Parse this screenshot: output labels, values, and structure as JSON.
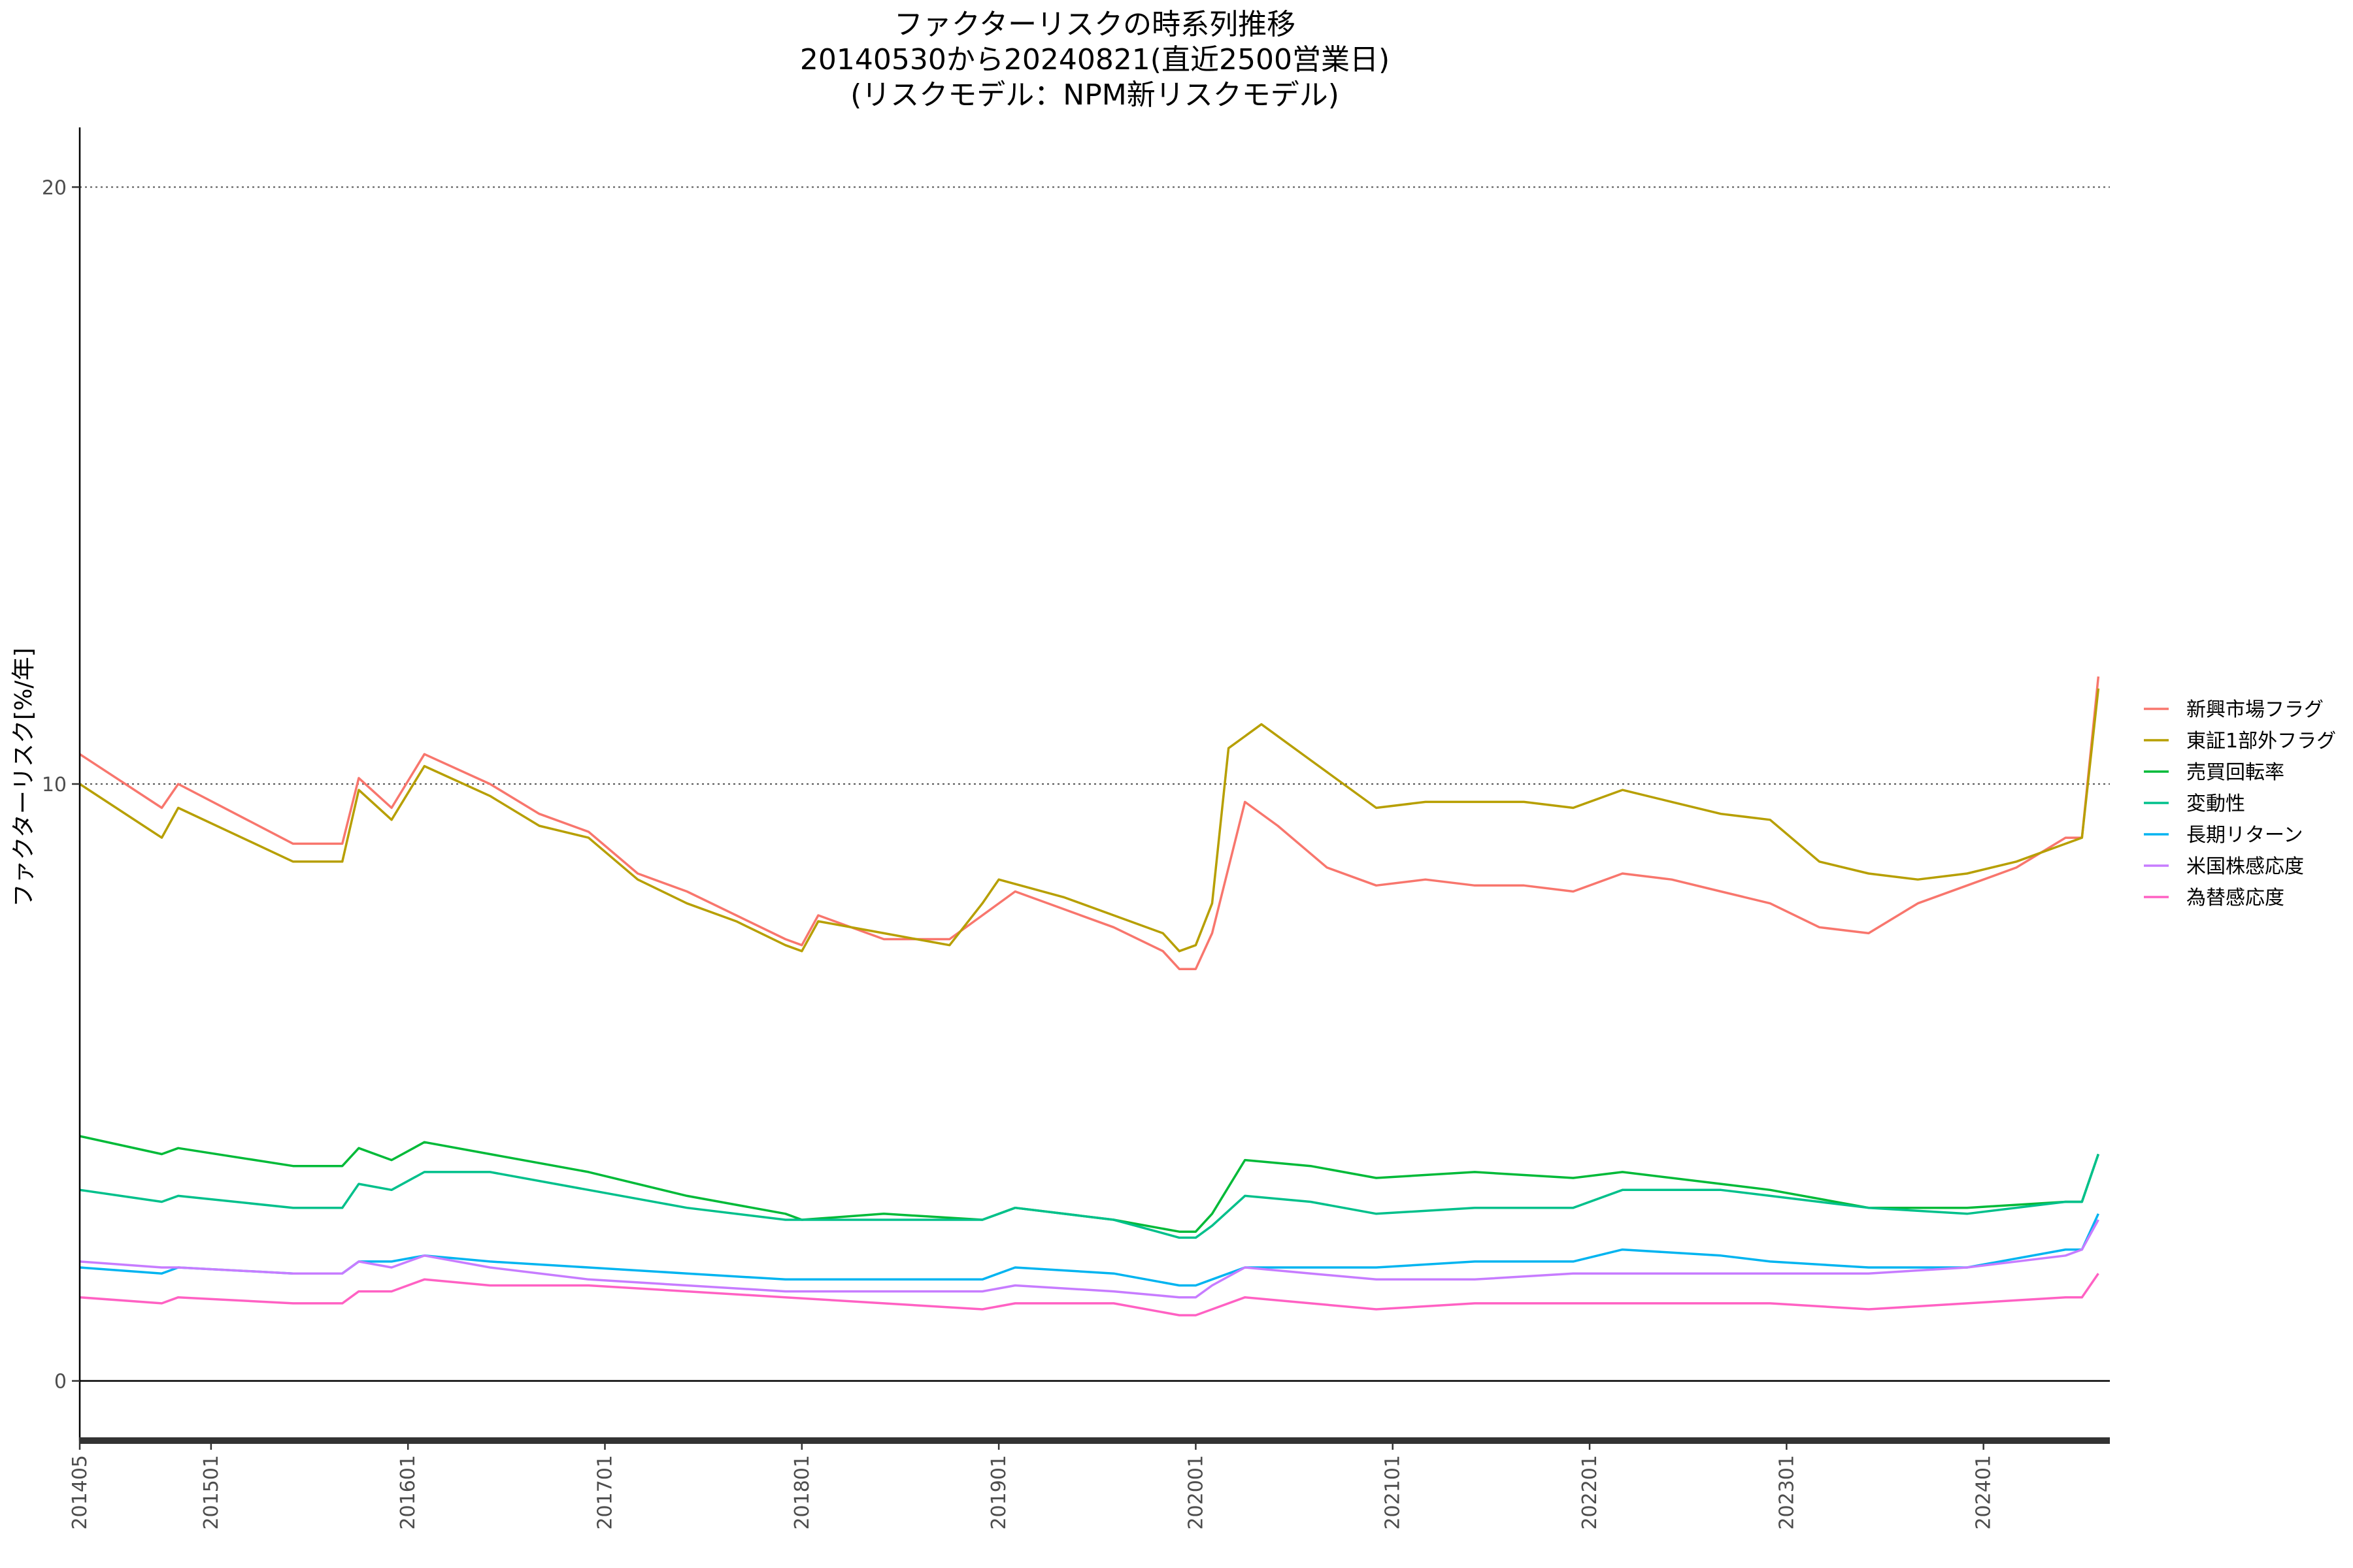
{
  "chart_data": {
    "type": "line",
    "title_lines": [
      "ファクターリスクの時系列推移",
      "20140530から20240821(直近2500営業日)",
      "(リスクモデル：NPM新リスクモデル)"
    ],
    "xlabel": "",
    "ylabel": "ファクターリスク[%/年]",
    "ylim": [
      -1,
      21
    ],
    "xlim": [
      "2014-05",
      "2024-08"
    ],
    "y_ticks": [
      0,
      10,
      20
    ],
    "y_gridlines": [
      10,
      20
    ],
    "y_zero_line": 0,
    "x_ticks": [
      {
        "label": "201405",
        "date": "2014-05"
      },
      {
        "label": "201501",
        "date": "2015-01"
      },
      {
        "label": "201601",
        "date": "2016-01"
      },
      {
        "label": "201701",
        "date": "2017-01"
      },
      {
        "label": "201801",
        "date": "2018-01"
      },
      {
        "label": "201901",
        "date": "2019-01"
      },
      {
        "label": "202001",
        "date": "2020-01"
      },
      {
        "label": "202101",
        "date": "2021-01"
      },
      {
        "label": "202201",
        "date": "2022-01"
      },
      {
        "label": "202301",
        "date": "2023-01"
      },
      {
        "label": "202401",
        "date": "2024-01"
      }
    ],
    "legend_position": "right",
    "series": [
      {
        "name": "新興市場フラグ",
        "color": "#F8766D",
        "points": [
          [
            "2014-05",
            10.5
          ],
          [
            "2014-10",
            9.6
          ],
          [
            "2014-11",
            10.0
          ],
          [
            "2015-06",
            9.0
          ],
          [
            "2015-09",
            9.0
          ],
          [
            "2015-10",
            10.1
          ],
          [
            "2015-12",
            9.6
          ],
          [
            "2016-02",
            10.5
          ],
          [
            "2016-06",
            10.0
          ],
          [
            "2016-09",
            9.5
          ],
          [
            "2016-12",
            9.2
          ],
          [
            "2017-03",
            8.5
          ],
          [
            "2017-06",
            8.2
          ],
          [
            "2017-09",
            7.8
          ],
          [
            "2017-12",
            7.4
          ],
          [
            "2018-01",
            7.3
          ],
          [
            "2018-02",
            7.8
          ],
          [
            "2018-06",
            7.4
          ],
          [
            "2018-10",
            7.4
          ],
          [
            "2018-12",
            7.8
          ],
          [
            "2019-02",
            8.2
          ],
          [
            "2019-05",
            7.9
          ],
          [
            "2019-08",
            7.6
          ],
          [
            "2019-11",
            7.2
          ],
          [
            "2019-12",
            6.9
          ],
          [
            "2020-01",
            6.9
          ],
          [
            "2020-02",
            7.5
          ],
          [
            "2020-04",
            9.7
          ],
          [
            "2020-06",
            9.3
          ],
          [
            "2020-09",
            8.6
          ],
          [
            "2020-12",
            8.3
          ],
          [
            "2021-03",
            8.4
          ],
          [
            "2021-06",
            8.3
          ],
          [
            "2021-09",
            8.3
          ],
          [
            "2021-12",
            8.2
          ],
          [
            "2022-03",
            8.5
          ],
          [
            "2022-06",
            8.4
          ],
          [
            "2022-09",
            8.2
          ],
          [
            "2022-12",
            8.0
          ],
          [
            "2023-03",
            7.6
          ],
          [
            "2023-06",
            7.5
          ],
          [
            "2023-09",
            8.0
          ],
          [
            "2023-12",
            8.3
          ],
          [
            "2024-03",
            8.6
          ],
          [
            "2024-06",
            9.1
          ],
          [
            "2024-07",
            9.1
          ],
          [
            "2024-08",
            11.8
          ]
        ]
      },
      {
        "name": "東証1部外フラグ",
        "color": "#B79F00",
        "points": [
          [
            "2014-05",
            10.0
          ],
          [
            "2014-10",
            9.1
          ],
          [
            "2014-11",
            9.6
          ],
          [
            "2015-06",
            8.7
          ],
          [
            "2015-09",
            8.7
          ],
          [
            "2015-10",
            9.9
          ],
          [
            "2015-12",
            9.4
          ],
          [
            "2016-02",
            10.3
          ],
          [
            "2016-06",
            9.8
          ],
          [
            "2016-09",
            9.3
          ],
          [
            "2016-12",
            9.1
          ],
          [
            "2017-03",
            8.4
          ],
          [
            "2017-06",
            8.0
          ],
          [
            "2017-09",
            7.7
          ],
          [
            "2017-12",
            7.3
          ],
          [
            "2018-01",
            7.2
          ],
          [
            "2018-02",
            7.7
          ],
          [
            "2018-06",
            7.5
          ],
          [
            "2018-10",
            7.3
          ],
          [
            "2018-12",
            8.0
          ],
          [
            "2019-01",
            8.4
          ],
          [
            "2019-05",
            8.1
          ],
          [
            "2019-08",
            7.8
          ],
          [
            "2019-11",
            7.5
          ],
          [
            "2019-12",
            7.2
          ],
          [
            "2020-01",
            7.3
          ],
          [
            "2020-02",
            8.0
          ],
          [
            "2020-03",
            10.6
          ],
          [
            "2020-05",
            11.0
          ],
          [
            "2020-08",
            10.4
          ],
          [
            "2020-12",
            9.6
          ],
          [
            "2021-03",
            9.7
          ],
          [
            "2021-06",
            9.7
          ],
          [
            "2021-09",
            9.7
          ],
          [
            "2021-12",
            9.6
          ],
          [
            "2022-03",
            9.9
          ],
          [
            "2022-06",
            9.7
          ],
          [
            "2022-09",
            9.5
          ],
          [
            "2022-12",
            9.4
          ],
          [
            "2023-03",
            8.7
          ],
          [
            "2023-06",
            8.5
          ],
          [
            "2023-09",
            8.4
          ],
          [
            "2023-12",
            8.5
          ],
          [
            "2024-03",
            8.7
          ],
          [
            "2024-06",
            9.0
          ],
          [
            "2024-07",
            9.1
          ],
          [
            "2024-08",
            11.6
          ]
        ]
      },
      {
        "name": "売買回転率",
        "color": "#00BA38",
        "points": [
          [
            "2014-05",
            4.1
          ],
          [
            "2014-10",
            3.8
          ],
          [
            "2014-11",
            3.9
          ],
          [
            "2015-06",
            3.6
          ],
          [
            "2015-09",
            3.6
          ],
          [
            "2015-10",
            3.9
          ],
          [
            "2015-12",
            3.7
          ],
          [
            "2016-02",
            4.0
          ],
          [
            "2016-06",
            3.8
          ],
          [
            "2016-12",
            3.5
          ],
          [
            "2017-06",
            3.1
          ],
          [
            "2017-12",
            2.8
          ],
          [
            "2018-01",
            2.7
          ],
          [
            "2018-06",
            2.8
          ],
          [
            "2018-12",
            2.7
          ],
          [
            "2019-02",
            2.9
          ],
          [
            "2019-08",
            2.7
          ],
          [
            "2019-12",
            2.5
          ],
          [
            "2020-01",
            2.5
          ],
          [
            "2020-02",
            2.8
          ],
          [
            "2020-04",
            3.7
          ],
          [
            "2020-08",
            3.6
          ],
          [
            "2020-12",
            3.4
          ],
          [
            "2021-06",
            3.5
          ],
          [
            "2021-12",
            3.4
          ],
          [
            "2022-03",
            3.5
          ],
          [
            "2022-09",
            3.3
          ],
          [
            "2022-12",
            3.2
          ],
          [
            "2023-06",
            2.9
          ],
          [
            "2023-12",
            2.9
          ],
          [
            "2024-06",
            3.0
          ],
          [
            "2024-07",
            3.0
          ],
          [
            "2024-08",
            3.8
          ]
        ]
      },
      {
        "name": "変動性",
        "color": "#00C08B",
        "points": [
          [
            "2014-05",
            3.2
          ],
          [
            "2014-10",
            3.0
          ],
          [
            "2014-11",
            3.1
          ],
          [
            "2015-06",
            2.9
          ],
          [
            "2015-09",
            2.9
          ],
          [
            "2015-10",
            3.3
          ],
          [
            "2015-12",
            3.2
          ],
          [
            "2016-02",
            3.5
          ],
          [
            "2016-06",
            3.5
          ],
          [
            "2016-12",
            3.2
          ],
          [
            "2017-06",
            2.9
          ],
          [
            "2017-12",
            2.7
          ],
          [
            "2018-06",
            2.7
          ],
          [
            "2018-12",
            2.7
          ],
          [
            "2019-02",
            2.9
          ],
          [
            "2019-08",
            2.7
          ],
          [
            "2019-12",
            2.4
          ],
          [
            "2020-01",
            2.4
          ],
          [
            "2020-02",
            2.6
          ],
          [
            "2020-04",
            3.1
          ],
          [
            "2020-08",
            3.0
          ],
          [
            "2020-12",
            2.8
          ],
          [
            "2021-06",
            2.9
          ],
          [
            "2021-12",
            2.9
          ],
          [
            "2022-03",
            3.2
          ],
          [
            "2022-09",
            3.2
          ],
          [
            "2022-12",
            3.1
          ],
          [
            "2023-06",
            2.9
          ],
          [
            "2023-12",
            2.8
          ],
          [
            "2024-06",
            3.0
          ],
          [
            "2024-07",
            3.0
          ],
          [
            "2024-08",
            3.8
          ]
        ]
      },
      {
        "name": "長期リターン",
        "color": "#00B4F0",
        "points": [
          [
            "2014-05",
            1.9
          ],
          [
            "2014-10",
            1.8
          ],
          [
            "2014-11",
            1.9
          ],
          [
            "2015-06",
            1.8
          ],
          [
            "2015-09",
            1.8
          ],
          [
            "2015-10",
            2.0
          ],
          [
            "2015-12",
            2.0
          ],
          [
            "2016-02",
            2.1
          ],
          [
            "2016-06",
            2.0
          ],
          [
            "2016-12",
            1.9
          ],
          [
            "2017-06",
            1.8
          ],
          [
            "2017-12",
            1.7
          ],
          [
            "2018-06",
            1.7
          ],
          [
            "2018-12",
            1.7
          ],
          [
            "2019-02",
            1.9
          ],
          [
            "2019-08",
            1.8
          ],
          [
            "2019-12",
            1.6
          ],
          [
            "2020-01",
            1.6
          ],
          [
            "2020-02",
            1.7
          ],
          [
            "2020-04",
            1.9
          ],
          [
            "2020-08",
            1.9
          ],
          [
            "2020-12",
            1.9
          ],
          [
            "2021-06",
            2.0
          ],
          [
            "2021-12",
            2.0
          ],
          [
            "2022-03",
            2.2
          ],
          [
            "2022-09",
            2.1
          ],
          [
            "2022-12",
            2.0
          ],
          [
            "2023-06",
            1.9
          ],
          [
            "2023-12",
            1.9
          ],
          [
            "2024-06",
            2.2
          ],
          [
            "2024-07",
            2.2
          ],
          [
            "2024-08",
            2.8
          ]
        ]
      },
      {
        "name": "米国株感応度",
        "color": "#C77CFF",
        "points": [
          [
            "2014-05",
            2.0
          ],
          [
            "2014-10",
            1.9
          ],
          [
            "2014-11",
            1.9
          ],
          [
            "2015-06",
            1.8
          ],
          [
            "2015-09",
            1.8
          ],
          [
            "2015-10",
            2.0
          ],
          [
            "2015-12",
            1.9
          ],
          [
            "2016-02",
            2.1
          ],
          [
            "2016-06",
            1.9
          ],
          [
            "2016-12",
            1.7
          ],
          [
            "2017-06",
            1.6
          ],
          [
            "2017-12",
            1.5
          ],
          [
            "2018-06",
            1.5
          ],
          [
            "2018-12",
            1.5
          ],
          [
            "2019-02",
            1.6
          ],
          [
            "2019-08",
            1.5
          ],
          [
            "2019-12",
            1.4
          ],
          [
            "2020-01",
            1.4
          ],
          [
            "2020-02",
            1.6
          ],
          [
            "2020-04",
            1.9
          ],
          [
            "2020-08",
            1.8
          ],
          [
            "2020-12",
            1.7
          ],
          [
            "2021-06",
            1.7
          ],
          [
            "2021-12",
            1.8
          ],
          [
            "2022-03",
            1.8
          ],
          [
            "2022-09",
            1.8
          ],
          [
            "2022-12",
            1.8
          ],
          [
            "2023-06",
            1.8
          ],
          [
            "2023-12",
            1.9
          ],
          [
            "2024-06",
            2.1
          ],
          [
            "2024-07",
            2.2
          ],
          [
            "2024-08",
            2.7
          ]
        ]
      },
      {
        "name": "為替感応度",
        "color": "#FF61C3",
        "points": [
          [
            "2014-05",
            1.4
          ],
          [
            "2014-10",
            1.3
          ],
          [
            "2014-11",
            1.4
          ],
          [
            "2015-06",
            1.3
          ],
          [
            "2015-09",
            1.3
          ],
          [
            "2015-10",
            1.5
          ],
          [
            "2015-12",
            1.5
          ],
          [
            "2016-02",
            1.7
          ],
          [
            "2016-06",
            1.6
          ],
          [
            "2016-12",
            1.6
          ],
          [
            "2017-06",
            1.5
          ],
          [
            "2017-12",
            1.4
          ],
          [
            "2018-06",
            1.3
          ],
          [
            "2018-12",
            1.2
          ],
          [
            "2019-02",
            1.3
          ],
          [
            "2019-08",
            1.3
          ],
          [
            "2019-12",
            1.1
          ],
          [
            "2020-01",
            1.1
          ],
          [
            "2020-02",
            1.2
          ],
          [
            "2020-04",
            1.4
          ],
          [
            "2020-08",
            1.3
          ],
          [
            "2020-12",
            1.2
          ],
          [
            "2021-06",
            1.3
          ],
          [
            "2021-12",
            1.3
          ],
          [
            "2022-03",
            1.3
          ],
          [
            "2022-09",
            1.3
          ],
          [
            "2022-12",
            1.3
          ],
          [
            "2023-06",
            1.2
          ],
          [
            "2023-12",
            1.3
          ],
          [
            "2024-06",
            1.4
          ],
          [
            "2024-07",
            1.4
          ],
          [
            "2024-08",
            1.8
          ]
        ]
      }
    ]
  }
}
